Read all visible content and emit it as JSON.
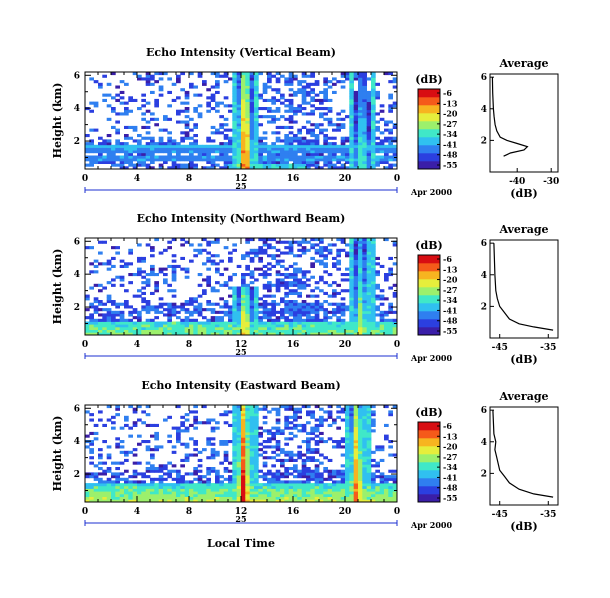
{
  "chart_data": {
    "type": "heatmap",
    "date_label": "Apr 2000",
    "date_day": "25",
    "xlabel": "Local Time",
    "xlim": [
      0,
      24
    ],
    "x_ticks": [
      "0",
      "4",
      "8",
      "12",
      "16",
      "20",
      "0"
    ],
    "ylabel": "Height (km)",
    "ylim": [
      0.3,
      6.2
    ],
    "y_ticks": [
      "2",
      "4",
      "6"
    ],
    "colorbar": {
      "unit": "(dB)",
      "ticks": [
        "-6",
        "-13",
        "-20",
        "-27",
        "-34",
        "-41",
        "-48",
        "-55"
      ],
      "colors": [
        "#3a1ea8",
        "#2b3fe0",
        "#2f7ff0",
        "#30c0f0",
        "#40e8c8",
        "#9cf06c",
        "#e6ee3c",
        "#f7b420",
        "#f55a1a",
        "#d80d12"
      ]
    },
    "panels": [
      {
        "title": "Echo Intensity (Vertical Beam)",
        "avg_title": "Average",
        "avg_xlabel": "(dB)",
        "avg_x_ticks": [
          "-40",
          "-30"
        ],
        "avg_xlim": [
          -48,
          -28
        ],
        "avg_profile": [
          [
            1.0,
            -44
          ],
          [
            1.2,
            -42
          ],
          [
            1.4,
            -38
          ],
          [
            1.6,
            -37
          ],
          [
            1.8,
            -40
          ],
          [
            2.0,
            -43
          ],
          [
            2.2,
            -45
          ],
          [
            2.6,
            -46
          ],
          [
            3.0,
            -46.5
          ],
          [
            3.5,
            -46.8
          ],
          [
            4.0,
            -47
          ],
          [
            5.0,
            -47.2
          ],
          [
            6.0,
            -47.3
          ]
        ],
        "noise_layers": true,
        "spikes": [
          {
            "time": 12.3,
            "intensity": 0.95,
            "top_km": 6.2
          },
          {
            "time": 21.3,
            "intensity": 0.55,
            "top_km": 6.2
          }
        ],
        "low_layer": [
          {
            "t0": 11.0,
            "t1": 17.0,
            "strength": 0.25
          }
        ]
      },
      {
        "title": "Echo Intensity (Northward Beam)",
        "avg_title": "Average",
        "avg_xlabel": "(dB)",
        "avg_x_ticks": [
          "-45",
          "-35"
        ],
        "avg_xlim": [
          -47,
          -33
        ],
        "avg_profile": [
          [
            0.5,
            -34
          ],
          [
            0.7,
            -38
          ],
          [
            0.9,
            -41
          ],
          [
            1.2,
            -43
          ],
          [
            1.6,
            -44
          ],
          [
            2.0,
            -45
          ],
          [
            2.5,
            -45.5
          ],
          [
            3.0,
            -45.8
          ],
          [
            4.0,
            -46
          ],
          [
            5.0,
            -46.1
          ],
          [
            6.0,
            -46.2
          ]
        ],
        "noise_layers": false,
        "spikes": [
          {
            "time": 12.3,
            "intensity": 0.85,
            "top_km": 3.2
          },
          {
            "time": 21.2,
            "intensity": 0.6,
            "top_km": 6.2
          }
        ],
        "low_layer": [
          {
            "t0": 0,
            "t1": 24,
            "strength": 0.55
          }
        ]
      },
      {
        "title": "Echo Intensity (Eastward Beam)",
        "avg_title": "Average",
        "avg_xlabel": "(dB)",
        "avg_x_ticks": [
          "-45",
          "-35"
        ],
        "avg_xlim": [
          -47,
          -33
        ],
        "avg_profile": [
          [
            0.5,
            -34
          ],
          [
            0.7,
            -38
          ],
          [
            1.0,
            -41
          ],
          [
            1.4,
            -43
          ],
          [
            1.8,
            -44
          ],
          [
            2.2,
            -45
          ],
          [
            3.0,
            -45.6
          ],
          [
            3.5,
            -46
          ],
          [
            4.0,
            -45.8
          ],
          [
            4.5,
            -46.2
          ],
          [
            6.0,
            -46.4
          ]
        ],
        "noise_layers": false,
        "spikes": [
          {
            "time": 12.2,
            "intensity": 1.0,
            "top_km": 6.2
          },
          {
            "time": 20.9,
            "intensity": 0.9,
            "top_km": 6.2
          }
        ],
        "low_layer": [
          {
            "t0": 0,
            "t1": 24,
            "strength": 0.7
          }
        ]
      }
    ]
  }
}
